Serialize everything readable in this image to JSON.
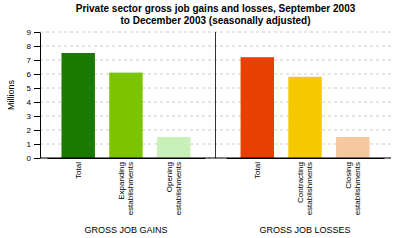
{
  "chart_data": {
    "type": "bar",
    "title": "Private sector gross job gains and losses, September 2003\nto December 2003 (seasonally adjusted)",
    "y_label": "Millions",
    "groups": [
      {
        "label": "GROSS JOB GAINS",
        "categories": [
          "Total",
          "Expanding\nestablishments",
          "Opening\nestablishments"
        ],
        "values": [
          7.5,
          6.1,
          1.5
        ],
        "colors": [
          "#1a7a00",
          "#7dc400",
          "#c8f0b8"
        ]
      },
      {
        "label": "GROSS JOB LOSSES",
        "categories": [
          "Total",
          "Contracting\nestablishments",
          "Closing\nestablishments"
        ],
        "values": [
          7.2,
          5.8,
          1.5
        ],
        "colors": [
          "#e84000",
          "#f5c800",
          "#f5c8a0"
        ]
      }
    ],
    "ylim": [
      0,
      9
    ],
    "yticks": [
      0,
      1,
      2,
      3,
      4,
      5,
      6,
      7,
      8,
      9
    ],
    "grid": true
  }
}
